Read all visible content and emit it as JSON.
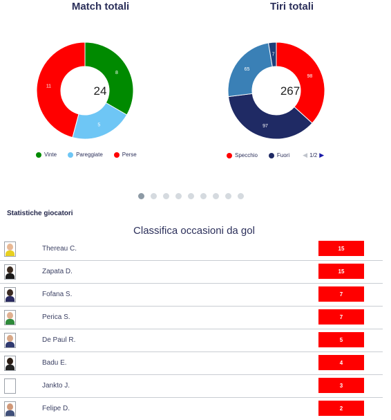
{
  "charts": [
    {
      "title": "Match totali",
      "total": "24",
      "segments": [
        {
          "label": "Vinte",
          "value": 8,
          "color": "#008a00"
        },
        {
          "label": "Pareggiate",
          "value": 5,
          "color": "#6ec6f5"
        },
        {
          "label": "Perse",
          "value": 11,
          "color": "#ff0000"
        }
      ]
    },
    {
      "title": "Tiri totali",
      "total": "267",
      "segments": [
        {
          "label": "Specchio",
          "value": 98,
          "color": "#ff0000"
        },
        {
          "label": "Fuori",
          "value": 97,
          "color": "#1f2a64"
        },
        {
          "label": "",
          "value": 65,
          "color": "#3a80b6"
        },
        {
          "label": "",
          "value": 7,
          "color": "#1f3f7a"
        }
      ],
      "pager": {
        "current": "1/2"
      }
    }
  ],
  "carousel": {
    "count": 9,
    "active": 0
  },
  "section_label": "Statistiche giocatori",
  "ranking": {
    "title": "Classifica occasioni da gol",
    "players": [
      {
        "name": "Thereau C.",
        "value": "15",
        "avatar": {
          "head": "#e8b894",
          "body": "#e8d020"
        }
      },
      {
        "name": "Zapata D.",
        "value": "15",
        "avatar": {
          "head": "#3a2a20",
          "body": "#1a1a1a"
        }
      },
      {
        "name": "Fofana S.",
        "value": "7",
        "avatar": {
          "head": "#3a2a22",
          "body": "#2a2a60"
        }
      },
      {
        "name": "Perica S.",
        "value": "7",
        "avatar": {
          "head": "#e0b090",
          "body": "#2e8a3a"
        }
      },
      {
        "name": "De Paul R.",
        "value": "5",
        "avatar": {
          "head": "#d8a888",
          "body": "#303a70"
        }
      },
      {
        "name": "Badu E.",
        "value": "4",
        "avatar": {
          "head": "#2a1c14",
          "body": "#222222"
        }
      },
      {
        "name": "Jankto J.",
        "value": "3",
        "avatar": null
      },
      {
        "name": "Felipe D.",
        "value": "2",
        "avatar": {
          "head": "#d09878",
          "body": "#40507a"
        }
      }
    ]
  }
}
